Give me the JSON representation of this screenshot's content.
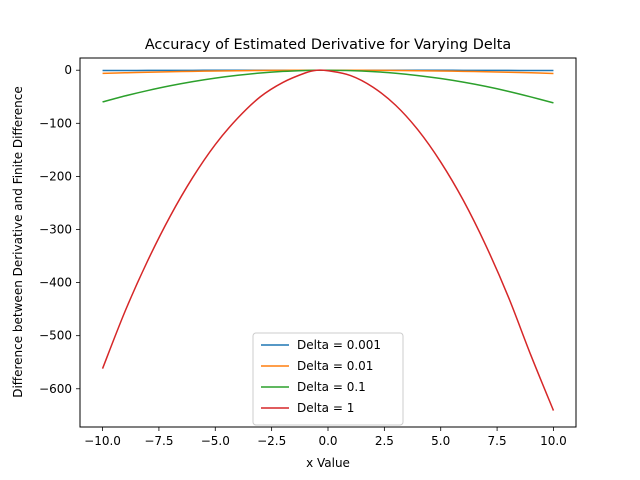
{
  "chart_data": {
    "type": "line",
    "title": "Accuracy of Estimated Derivative for Varying Delta",
    "xlabel": "x Value",
    "ylabel": "Difference between Derivative and Finite Difference",
    "xlim": [
      -11,
      11
    ],
    "ylim": [
      -672,
      23
    ],
    "x_ticks": [
      -10.0,
      -7.5,
      -5.0,
      -2.5,
      0.0,
      2.5,
      5.0,
      7.5,
      10.0
    ],
    "x_tick_labels": [
      "−10.0",
      "−7.5",
      "−5.0",
      "−2.5",
      "0.0",
      "2.5",
      "5.0",
      "7.5",
      "10.0"
    ],
    "y_ticks": [
      0,
      -100,
      -200,
      -300,
      -400,
      -500,
      -600
    ],
    "y_tick_labels": [
      "0",
      "−100",
      "−200",
      "−300",
      "−400",
      "−500",
      "−600"
    ],
    "grid": false,
    "legend_position": "bottom-center",
    "x": [
      -10,
      -9,
      -8,
      -7,
      -6,
      -5,
      -4,
      -3,
      -2,
      -1,
      -0.5,
      0,
      1,
      2,
      3,
      4,
      5,
      6,
      7,
      8,
      9,
      10
    ],
    "series": [
      {
        "name": "Delta = 0.001",
        "color": "#1f77b4",
        "values": [
          -0.6,
          -0.49,
          -0.39,
          -0.29,
          -0.21,
          -0.15,
          -0.1,
          -0.05,
          -0.02,
          -0.01,
          0,
          0,
          -0.01,
          -0.02,
          -0.05,
          -0.1,
          -0.15,
          -0.21,
          -0.29,
          -0.39,
          -0.49,
          -0.6
        ]
      },
      {
        "name": "Delta = 0.01",
        "color": "#ff7f0e",
        "values": [
          -6.0,
          -4.9,
          -3.9,
          -2.9,
          -2.1,
          -1.5,
          -1.0,
          -0.5,
          -0.2,
          -0.1,
          0,
          0,
          -0.1,
          -0.2,
          -0.5,
          -1.0,
          -1.5,
          -2.1,
          -2.9,
          -3.9,
          -4.9,
          -6.1
        ]
      },
      {
        "name": "Delta = 0.1",
        "color": "#2ca02c",
        "values": [
          -59.8,
          -48.4,
          -38.3,
          -29.3,
          -21.5,
          -14.9,
          -9.5,
          -5.3,
          -2.3,
          -0.5,
          -0.1,
          0,
          -0.7,
          -2.6,
          -5.7,
          -10.1,
          -15.7,
          -22.5,
          -30.5,
          -39.8,
          -50.3,
          -61.5
        ]
      },
      {
        "name": "Delta = 1",
        "color": "#d62728",
        "values": [
          -562,
          -454,
          -359,
          -275,
          -202,
          -140,
          -90,
          -50,
          -23,
          -5,
          0,
          -1,
          -10,
          -32,
          -66,
          -113,
          -173,
          -245,
          -330,
          -427,
          -537,
          -641
        ]
      }
    ]
  }
}
